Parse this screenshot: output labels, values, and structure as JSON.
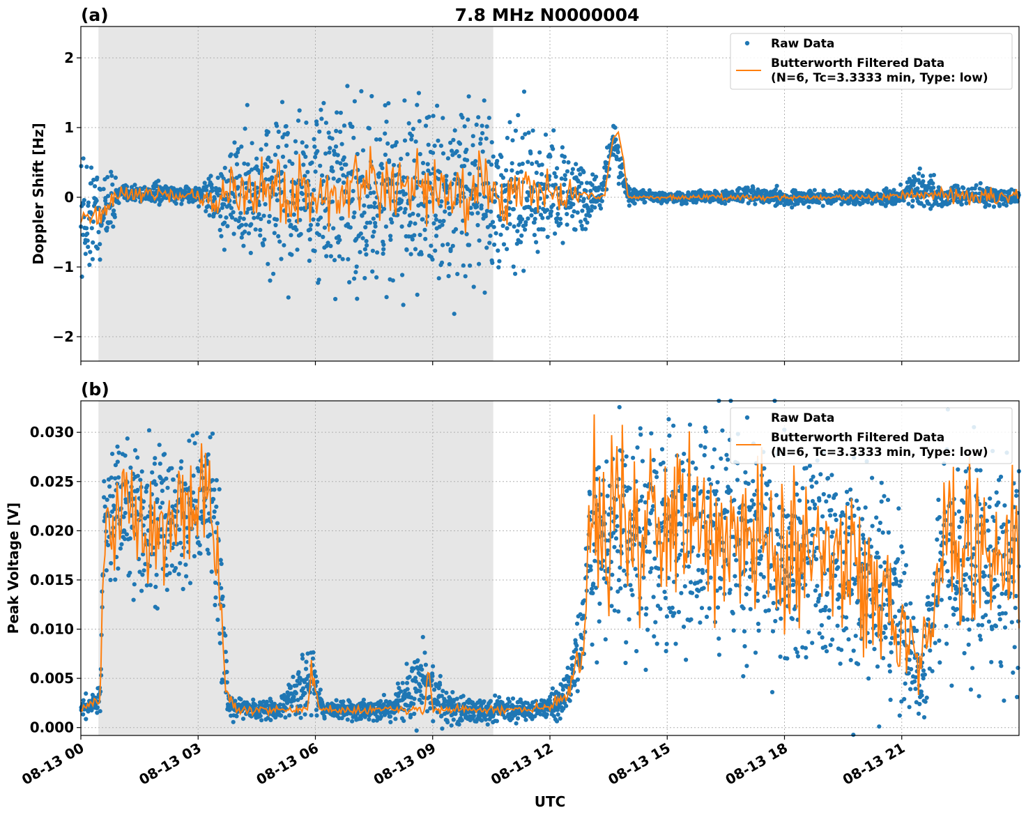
{
  "figure_title": "7.8 MHz N0000004",
  "colors": {
    "raw": "#1f77b4",
    "filtered": "#ff7f0e",
    "shade": "#e6e6e6",
    "grid": "#b0b0b0"
  },
  "chart_data": [
    {
      "type": "scatter",
      "panel_label": "(a)",
      "title": "7.8 MHz N0000004",
      "xlabel": "",
      "ylabel": "Doppler Shift [Hz]",
      "xlim": [
        0,
        24
      ],
      "ylim": [
        -2.35,
        2.45
      ],
      "yticks": [
        -2,
        -1,
        0,
        1,
        2
      ],
      "ytick_labels": [
        "−2",
        "−1",
        "0",
        "1",
        "2"
      ],
      "shaded_x_range": [
        0.45,
        10.55
      ],
      "grid": true,
      "legend": {
        "position": "top-right",
        "raw": "Raw Data",
        "filtered_line1": "Butterworth Filtered Data",
        "filtered_line2": "(N=6, Tc=3.3333 min, Type: low)"
      },
      "series": [
        {
          "name": "Raw Data",
          "kind": "scatter",
          "x": [
            0.0,
            0.5,
            1.0,
            2.0,
            3.0,
            3.5,
            4.0,
            5.0,
            6.0,
            7.0,
            8.0,
            9.0,
            10.0,
            11.0,
            12.0,
            12.8,
            13.3,
            13.6,
            14.0,
            15.0,
            16.0,
            17.0,
            18.0,
            19.0,
            20.0,
            21.0,
            21.5,
            22.0,
            23.0,
            24.0
          ],
          "mean": [
            -0.3,
            -0.2,
            0.05,
            0.05,
            0.05,
            -0.05,
            0.05,
            0.05,
            0.0,
            0.0,
            0.05,
            0.0,
            0.05,
            0.05,
            0.05,
            0.0,
            0.02,
            0.85,
            0.02,
            0.0,
            0.0,
            0.02,
            0.0,
            0.0,
            0.0,
            0.02,
            0.1,
            0.02,
            0.02,
            0.0
          ],
          "spread": [
            0.75,
            0.7,
            0.12,
            0.12,
            0.12,
            0.3,
            0.9,
            1.0,
            1.1,
            1.1,
            1.05,
            1.05,
            1.0,
            0.95,
            0.75,
            0.45,
            0.15,
            0.35,
            0.1,
            0.06,
            0.08,
            0.1,
            0.1,
            0.08,
            0.08,
            0.12,
            0.35,
            0.12,
            0.12,
            0.12
          ]
        },
        {
          "name": "Butterworth Filtered Data",
          "kind": "line",
          "x": [
            0.0,
            0.5,
            1.0,
            2.0,
            3.0,
            3.5,
            4.0,
            6.0,
            8.0,
            10.0,
            12.0,
            13.0,
            13.4,
            13.6,
            13.8,
            14.0,
            16.0,
            18.0,
            20.0,
            22.0,
            24.0
          ],
          "y": [
            -0.3,
            -0.2,
            0.05,
            0.05,
            0.0,
            -0.1,
            0.1,
            0.05,
            0.1,
            0.05,
            0.05,
            0.02,
            0.02,
            0.85,
            0.85,
            0.0,
            0.0,
            0.0,
            0.0,
            0.03,
            0.0
          ],
          "jitter": [
            0.05,
            0.1,
            0.05,
            0.05,
            0.05,
            0.15,
            0.22,
            0.22,
            0.24,
            0.24,
            0.15,
            0.04,
            0.02,
            0.05,
            0.05,
            0.01,
            0.02,
            0.02,
            0.02,
            0.05,
            0.05
          ]
        }
      ]
    },
    {
      "type": "scatter",
      "panel_label": "(b)",
      "title": "",
      "xlabel": "UTC",
      "ylabel": "Peak Voltage [V]",
      "xlim": [
        0,
        24
      ],
      "ylim": [
        -0.0008,
        0.0332
      ],
      "yticks": [
        0.0,
        0.005,
        0.01,
        0.015,
        0.02,
        0.025,
        0.03
      ],
      "ytick_labels": [
        "0.000",
        "0.005",
        "0.010",
        "0.015",
        "0.020",
        "0.025",
        "0.030"
      ],
      "xticks": [
        0,
        3,
        6,
        9,
        12,
        15,
        18,
        21
      ],
      "xtick_labels": [
        "08-13 00",
        "08-13 03",
        "08-13 06",
        "08-13 09",
        "08-13 12",
        "08-13 15",
        "08-13 18",
        "08-13 21"
      ],
      "shaded_x_range": [
        0.45,
        10.55
      ],
      "grid": true,
      "legend": {
        "position": "top-right",
        "raw": "Raw Data",
        "filtered_line1": "Butterworth Filtered Data",
        "filtered_line2": "(N=6, Tc=3.3333 min, Type: low)"
      },
      "series": [
        {
          "name": "Raw Data",
          "kind": "scatter",
          "x": [
            0.0,
            0.5,
            0.6,
            1.0,
            2.0,
            3.0,
            3.4,
            3.6,
            3.8,
            5.0,
            5.9,
            6.2,
            8.0,
            8.8,
            9.5,
            10.5,
            11.5,
            12.3,
            12.8,
            13.1,
            14.0,
            15.0,
            16.0,
            17.0,
            18.0,
            19.0,
            20.0,
            21.0,
            21.5,
            22.0,
            23.0,
            24.0
          ],
          "mean": [
            0.002,
            0.003,
            0.022,
            0.022,
            0.021,
            0.021,
            0.024,
            0.012,
            0.002,
            0.0018,
            0.005,
            0.0018,
            0.0018,
            0.005,
            0.0018,
            0.0018,
            0.0018,
            0.0025,
            0.008,
            0.02,
            0.02,
            0.02,
            0.019,
            0.018,
            0.018,
            0.017,
            0.016,
            0.012,
            0.004,
            0.018,
            0.017,
            0.016
          ],
          "spread": [
            0.0008,
            0.0012,
            0.005,
            0.006,
            0.007,
            0.007,
            0.006,
            0.008,
            0.001,
            0.0008,
            0.003,
            0.0008,
            0.001,
            0.004,
            0.0015,
            0.001,
            0.0008,
            0.0015,
            0.004,
            0.009,
            0.009,
            0.01,
            0.01,
            0.01,
            0.01,
            0.01,
            0.01,
            0.009,
            0.003,
            0.01,
            0.01,
            0.01
          ]
        },
        {
          "name": "Butterworth Filtered Data",
          "kind": "line",
          "x": [
            0.0,
            0.5,
            0.6,
            1.0,
            2.0,
            3.0,
            3.3,
            3.5,
            3.7,
            4.0,
            5.8,
            5.9,
            6.1,
            8.8,
            8.9,
            9.0,
            11.0,
            12.0,
            12.5,
            12.9,
            13.0,
            14.0,
            15.0,
            16.0,
            17.0,
            18.0,
            19.0,
            20.0,
            21.0,
            21.5,
            22.0,
            23.0,
            24.0
          ],
          "y": [
            0.0018,
            0.003,
            0.021,
            0.022,
            0.021,
            0.022,
            0.026,
            0.016,
            0.004,
            0.0018,
            0.0018,
            0.006,
            0.0018,
            0.0018,
            0.007,
            0.0018,
            0.0018,
            0.002,
            0.004,
            0.01,
            0.022,
            0.02,
            0.022,
            0.019,
            0.019,
            0.018,
            0.018,
            0.016,
            0.01,
            0.005,
            0.018,
            0.018,
            0.017
          ],
          "jitter": [
            0.0002,
            0.0005,
            0.002,
            0.0025,
            0.003,
            0.003,
            0.002,
            0.002,
            0.0005,
            0.0002,
            0.0002,
            0.001,
            0.0002,
            0.0002,
            0.001,
            0.0002,
            0.0002,
            0.0003,
            0.0008,
            0.002,
            0.004,
            0.004,
            0.004,
            0.004,
            0.004,
            0.004,
            0.004,
            0.004,
            0.003,
            0.0015,
            0.004,
            0.004,
            0.004
          ]
        }
      ]
    }
  ]
}
